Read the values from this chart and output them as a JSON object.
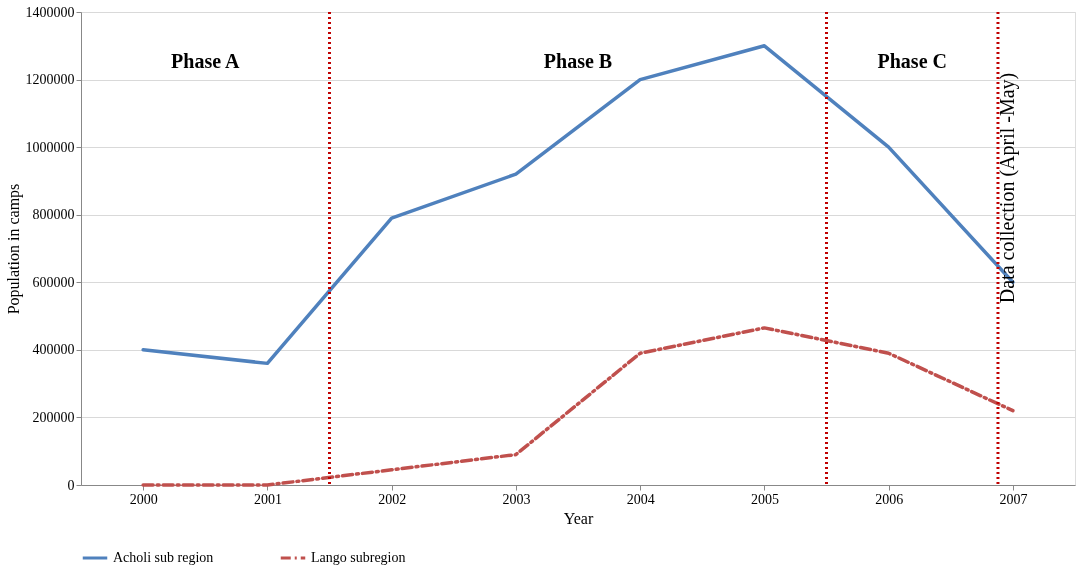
{
  "chart_data": {
    "type": "line",
    "xlabel": "Year",
    "ylabel": "Population in camps",
    "x": [
      2000,
      2001,
      2002,
      2003,
      2004,
      2005,
      2006,
      2007
    ],
    "xlim": [
      1999.5,
      2007.5
    ],
    "xticks": [
      2000,
      2001,
      2002,
      2003,
      2004,
      2005,
      2006,
      2007
    ],
    "ylim": [
      0,
      1400000
    ],
    "yticks": [
      0,
      200000,
      400000,
      600000,
      800000,
      1000000,
      1200000,
      1400000
    ],
    "series": [
      {
        "name": "Acholi sub region",
        "color": "#4f81bd",
        "line_style": "solid",
        "values": [
          400000,
          360000,
          790000,
          920000,
          1200000,
          1300000,
          1000000,
          600000
        ]
      },
      {
        "name": "Lango subregion",
        "color": "#c0504d",
        "line_style": "dashdot",
        "values": [
          0,
          0,
          45000,
          90000,
          390000,
          465000,
          390000,
          220000
        ]
      }
    ],
    "ref_lines": [
      {
        "axis": "x",
        "value": 2001.5,
        "label": null,
        "color": "#c00000",
        "line_style": "dotted"
      },
      {
        "axis": "x",
        "value": 2005.5,
        "label": null,
        "color": "#c00000",
        "line_style": "dotted"
      },
      {
        "axis": "x",
        "value": 2006.88,
        "label": "Data collection (April -May)",
        "color": "#c00000",
        "line_style": "dotted"
      }
    ],
    "annotations": [
      "Phase A",
      "Phase B",
      "Phase C"
    ],
    "grid": "y",
    "legend": "bottom",
    "marker": "none"
  }
}
